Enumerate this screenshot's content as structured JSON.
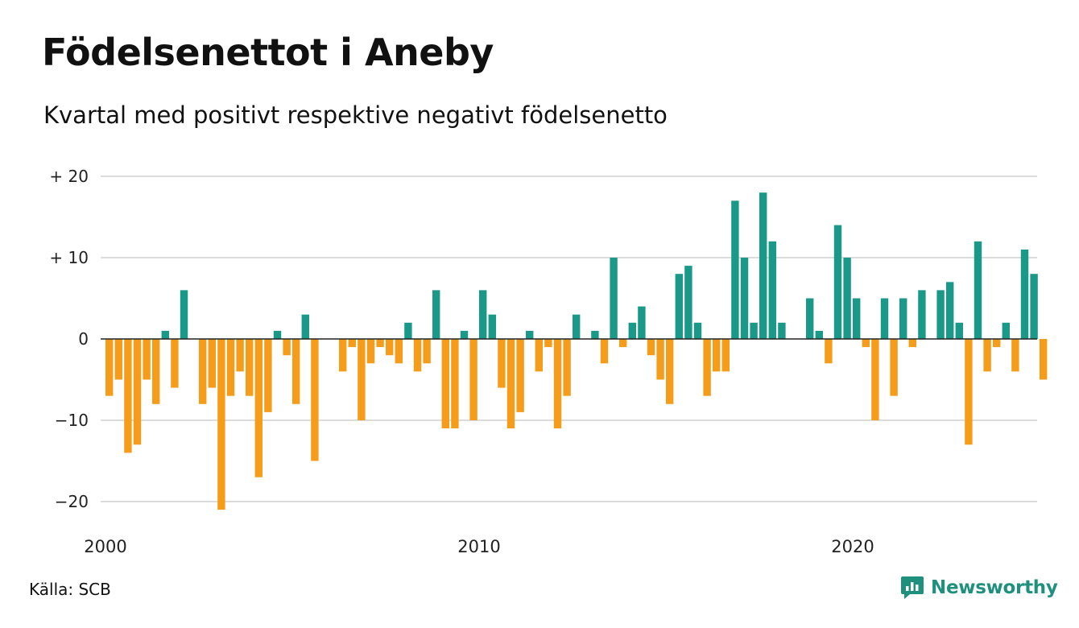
{
  "title": "Födelsenettot i Aneby",
  "subtitle": "Kvartal med positivt respektive negativt födelsenetto",
  "source": "Källa: SCB",
  "brand": "Newsworthy",
  "colors": {
    "positive": "#1a9988",
    "negative": "#f59c1a",
    "grid": "#dcdcdc",
    "brand": "#1f8f7e"
  },
  "chart_data": {
    "type": "bar",
    "x_start": "2000 Q1",
    "x_ticks": [
      {
        "label": "2000",
        "quarter_index": 0
      },
      {
        "label": "2010",
        "quarter_index": 40
      },
      {
        "label": "2020",
        "quarter_index": 80
      }
    ],
    "y_ticks": [
      {
        "value": 20,
        "label": "+ 20"
      },
      {
        "value": 10,
        "label": "+ 10"
      },
      {
        "value": 0,
        "label": "0"
      },
      {
        "value": -10,
        "label": "−10"
      },
      {
        "value": -20,
        "label": "−20"
      }
    ],
    "ylim": [
      -21,
      20
    ],
    "grid": true,
    "values": [
      -7,
      -5,
      -14,
      -13,
      -5,
      -8,
      1,
      -6,
      6,
      0,
      -8,
      -6,
      -21,
      -7,
      -4,
      -7,
      -17,
      -9,
      1,
      -2,
      -8,
      3,
      -15,
      0,
      0,
      -4,
      -1,
      -10,
      -3,
      -1,
      -2,
      -3,
      2,
      -4,
      -3,
      6,
      -11,
      -11,
      1,
      -10,
      6,
      3,
      -6,
      -11,
      -9,
      1,
      -4,
      -1,
      -11,
      -7,
      3,
      0,
      1,
      -3,
      10,
      -1,
      2,
      4,
      -2,
      -5,
      -8,
      8,
      9,
      2,
      -7,
      -4,
      -4,
      17,
      10,
      2,
      18,
      12,
      2,
      0,
      0,
      5,
      1,
      -3,
      14,
      10,
      5,
      -1,
      -10,
      5,
      -7,
      5,
      -1,
      6,
      0,
      6,
      7,
      2,
      -13,
      12,
      -4,
      -1,
      2,
      -4,
      11,
      8,
      -5
    ]
  }
}
